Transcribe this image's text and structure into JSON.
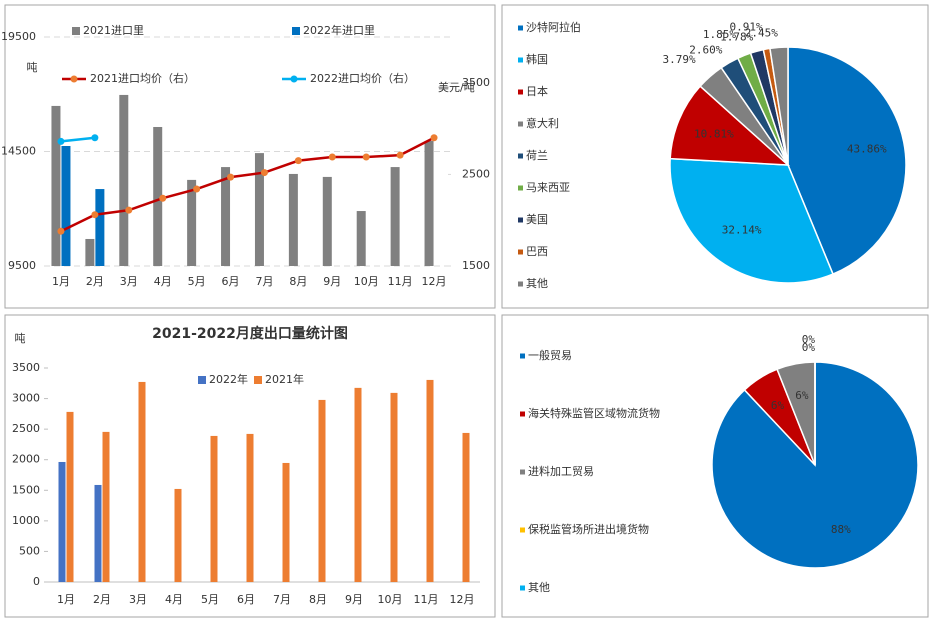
{
  "chart_data": [
    {
      "type": "bar",
      "categories": [
        "1月",
        "2月",
        "3月",
        "4月",
        "5月",
        "6月",
        "7月",
        "8月",
        "9月",
        "10月",
        "11月",
        "12月"
      ],
      "y_label": "吨",
      "y2_label": "美元/吨",
      "ylim": [
        9500,
        19500
      ],
      "yticks": [
        9500,
        14500,
        19500
      ],
      "y2lim": [
        1500,
        4000
      ],
      "y2ticks": [
        1500,
        2500,
        3500
      ],
      "grid": true,
      "series": [
        {
          "name": "2021进口里",
          "type": "bar",
          "color": "#808080",
          "values": [
            16490,
            10680,
            16970,
            15570,
            13260,
            13820,
            14430,
            13520,
            13390,
            11900,
            13820,
            14960
          ]
        },
        {
          "name": "2022年进口里",
          "type": "bar",
          "color": "#0070c0",
          "values": [
            14740,
            12860,
            null,
            null,
            null,
            null,
            null,
            null,
            null,
            null,
            null,
            null
          ]
        },
        {
          "name": "2021进口均价（右）",
          "type": "line",
          "axis": "y2",
          "color": "#c00000",
          "marker_color": "#ed7d31",
          "values": [
            1880,
            2060,
            2110,
            2240,
            2340,
            2470,
            2520,
            2650,
            2690,
            2690,
            2710,
            2900
          ]
        },
        {
          "name": "2022进口均价（右）",
          "type": "line",
          "axis": "y2",
          "color": "#00b0f0",
          "marker_color": "#00b0f0",
          "values": [
            2860,
            2900,
            null,
            null,
            null,
            null,
            null,
            null,
            null,
            null,
            null,
            null
          ]
        }
      ]
    },
    {
      "type": "pie",
      "categories": [
        "沙特阿拉伯",
        "韩国",
        "日本",
        "意大利",
        "荷兰",
        "马来西亚",
        "美国",
        "巴西",
        "其他"
      ],
      "values": [
        43.86,
        32.14,
        10.81,
        3.79,
        2.6,
        1.85,
        1.78,
        0.91,
        2.45
      ],
      "value_labels": [
        "43.86%",
        "32.14%",
        "10.81%",
        "3.79%",
        "2.60%",
        "1.85%",
        "1.78%",
        "0.91%",
        "2.45%"
      ],
      "colors": [
        "#0070c0",
        "#00b0f0",
        "#c00000",
        "#808080",
        "#1f4e79",
        "#70ad47",
        "#203864",
        "#c55a11",
        "#7f7f7f"
      ]
    },
    {
      "type": "bar",
      "title": "2021-2022月度出口量统计图",
      "y_label": "吨",
      "categories": [
        "1月",
        "2月",
        "3月",
        "4月",
        "5月",
        "6月",
        "7月",
        "8月",
        "9月",
        "10月",
        "11月",
        "12月"
      ],
      "ylim": [
        0,
        3500
      ],
      "yticks": [
        0,
        500,
        1000,
        1500,
        2000,
        2500,
        3000,
        3500
      ],
      "grid": false,
      "series": [
        {
          "name": "2022年",
          "type": "bar",
          "color": "#4472c4",
          "values": [
            1963,
            1587,
            null,
            null,
            null,
            null,
            null,
            null,
            null,
            null,
            null,
            null
          ]
        },
        {
          "name": "2021年",
          "type": "bar",
          "color": "#ed7d31",
          "values": [
            2782,
            2455,
            3272,
            1522,
            2389,
            2422,
            1947,
            2978,
            3175,
            3093,
            3305,
            2438
          ]
        }
      ]
    },
    {
      "type": "pie",
      "categories": [
        "一般贸易",
        "海关特殊监管区域物流货物",
        "进料加工贸易",
        "保税监管场所进出境货物",
        "其他"
      ],
      "values": [
        88,
        6,
        6,
        0,
        0
      ],
      "value_labels": [
        "88%",
        "6%",
        "6%",
        "0%",
        "0%"
      ],
      "colors": [
        "#0070c0",
        "#c00000",
        "#808080",
        "#ffc000",
        "#00b0f0"
      ]
    }
  ]
}
